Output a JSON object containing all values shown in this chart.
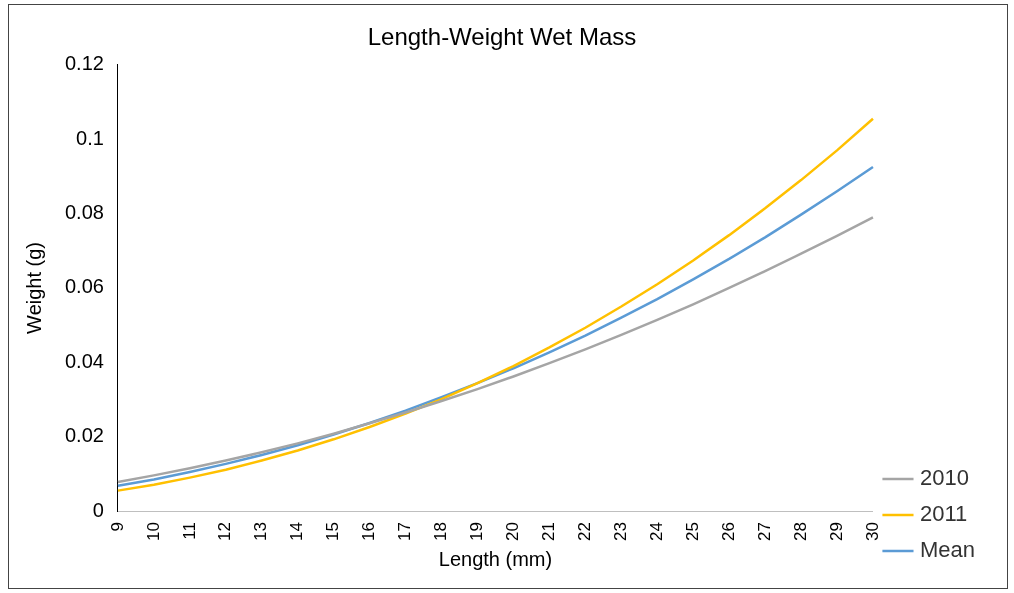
{
  "chart_data": {
    "type": "line",
    "title": "Length-Weight Wet Mass",
    "xlabel": "Length (mm)",
    "ylabel": "Weight (g)",
    "categories": [
      "9",
      "10",
      "11",
      "12",
      "13",
      "14",
      "15",
      "16",
      "17",
      "18",
      "19",
      "20",
      "21",
      "22",
      "23",
      "24",
      "25",
      "26",
      "27",
      "28",
      "29",
      "30"
    ],
    "series": [
      {
        "name": "2010",
        "color": "#a5a5a5",
        "values": [
          0.0078,
          0.0096,
          0.0115,
          0.0136,
          0.0158,
          0.0182,
          0.0208,
          0.0236,
          0.0265,
          0.0296,
          0.0328,
          0.0362,
          0.0398,
          0.0435,
          0.0474,
          0.0514,
          0.0556,
          0.06,
          0.0645,
          0.0692,
          0.074,
          0.079
        ]
      },
      {
        "name": "2011",
        "color": "#ffc000",
        "values": [
          0.0055,
          0.0071,
          0.009,
          0.0111,
          0.0136,
          0.0163,
          0.0193,
          0.0226,
          0.0262,
          0.0301,
          0.0344,
          0.039,
          0.044,
          0.0493,
          0.055,
          0.061,
          0.0674,
          0.0742,
          0.0814,
          0.089,
          0.097,
          0.1055
        ]
      },
      {
        "name": "Mean",
        "color": "#5b9bd5",
        "values": [
          0.0068,
          0.0085,
          0.0105,
          0.0127,
          0.0151,
          0.0177,
          0.0206,
          0.0237,
          0.027,
          0.0306,
          0.0344,
          0.0384,
          0.0427,
          0.0472,
          0.052,
          0.057,
          0.0623,
          0.0678,
          0.0736,
          0.0797,
          0.086,
          0.0925
        ]
      }
    ],
    "ylim": [
      0,
      0.12
    ],
    "yticks": [
      0,
      0.02,
      0.04,
      0.06,
      0.08,
      0.1,
      0.12
    ],
    "grid": false,
    "legend": "right",
    "marker": "none",
    "line_style": "solid"
  }
}
